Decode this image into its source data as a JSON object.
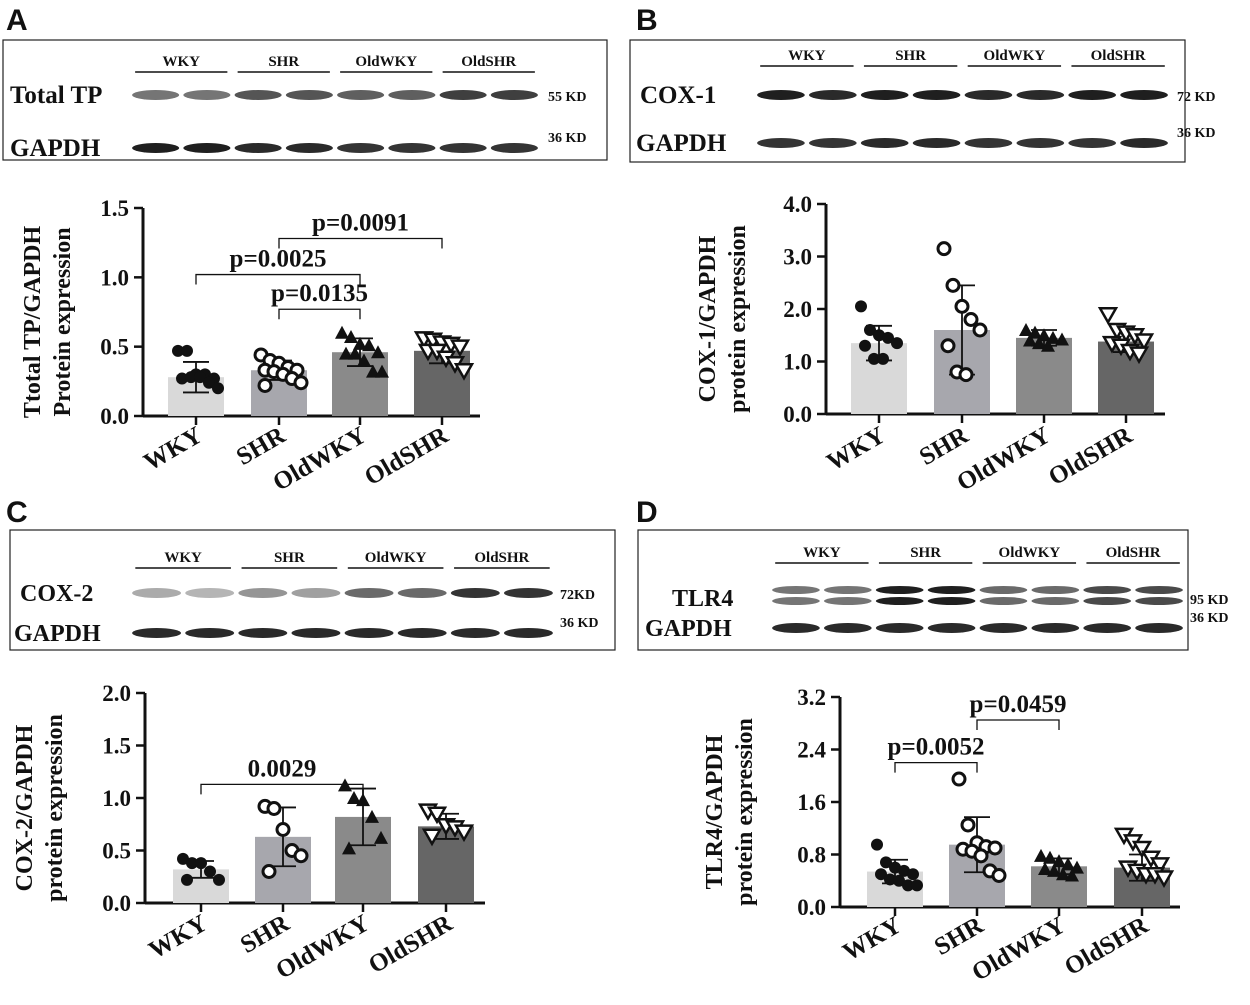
{
  "chart_data": [
    {
      "panel": "A",
      "type": "bar",
      "ylabel": [
        "Ttotal TP/GAPDH",
        "Protein expression"
      ],
      "categories": [
        "WKY",
        "SHR",
        "OldWKY",
        "OldSHR"
      ],
      "yticks": [
        "0.0",
        "0.5",
        "1.0",
        "1.5"
      ],
      "ylim": [
        0,
        1.5
      ],
      "values": [
        0.28,
        0.33,
        0.46,
        0.47
      ],
      "sd": [
        0.11,
        0.07,
        0.1,
        0.09
      ],
      "points": [
        [
          0.47,
          0.47,
          0.3,
          0.3,
          0.27,
          0.27,
          0.28,
          0.28,
          0.24,
          0.2
        ],
        [
          0.44,
          0.4,
          0.38,
          0.35,
          0.33,
          0.33,
          0.32,
          0.3,
          0.27,
          0.24,
          0.22
        ],
        [
          0.6,
          0.57,
          0.52,
          0.51,
          0.46,
          0.45,
          0.45,
          0.4,
          0.32,
          0.32
        ],
        [
          0.56,
          0.55,
          0.53,
          0.52,
          0.5,
          0.47,
          0.47,
          0.42,
          0.38,
          0.33
        ]
      ],
      "markers": [
        "filled-circle",
        "open-circle",
        "filled-triangle",
        "open-triangle-down"
      ],
      "brackets": [
        {
          "from": 0,
          "to": 2,
          "y": 1.02,
          "label": "p=0.0025"
        },
        {
          "from": 1,
          "to": 2,
          "y": 0.77,
          "label": "p=0.0135"
        },
        {
          "from": 1,
          "to": 3,
          "y": 1.28,
          "label": "p=0.0091"
        }
      ],
      "blot": {
        "groups": [
          "WKY",
          "SHR",
          "OldWKY",
          "OldSHR"
        ],
        "rows": [
          {
            "label": "Total TP",
            "kd": "55 KD",
            "intensity": [
              0.55,
              0.55,
              0.7,
              0.7,
              0.65,
              0.65,
              0.8,
              0.8
            ]
          },
          {
            "label": "GAPDH",
            "kd": "36 KD",
            "intensity": [
              0.95,
              0.95,
              0.9,
              0.9,
              0.85,
              0.85,
              0.85,
              0.85
            ]
          }
        ]
      }
    },
    {
      "panel": "B",
      "type": "bar",
      "ylabel": [
        "COX-1/GAPDH",
        "protein expression"
      ],
      "categories": [
        "WKY",
        "SHR",
        "OldWKY",
        "OldSHR"
      ],
      "yticks": [
        "0.0",
        "1.0",
        "2.0",
        "3.0",
        "4.0"
      ],
      "ylim": [
        0,
        4.0
      ],
      "values": [
        1.35,
        1.6,
        1.45,
        1.38
      ],
      "sd": [
        0.33,
        0.85,
        0.15,
        0.2
      ],
      "points": [
        [
          2.05,
          1.6,
          1.5,
          1.45,
          1.35,
          1.3,
          1.05,
          1.05
        ],
        [
          3.15,
          2.45,
          2.05,
          1.8,
          1.6,
          1.3,
          0.8,
          0.75
        ],
        [
          1.6,
          1.55,
          1.5,
          1.45,
          1.42,
          1.4,
          1.35,
          1.3
        ],
        [
          1.9,
          1.6,
          1.55,
          1.5,
          1.4,
          1.35,
          1.3,
          1.2,
          1.15
        ]
      ],
      "markers": [
        "filled-circle",
        "open-circle",
        "filled-triangle",
        "open-triangle-down"
      ],
      "brackets": [],
      "blot": {
        "groups": [
          "WKY",
          "SHR",
          "OldWKY",
          "OldSHR"
        ],
        "rows": [
          {
            "label": "COX-1",
            "kd": "72 KD",
            "intensity": [
              0.95,
              0.9,
              0.95,
              0.95,
              0.9,
              0.9,
              0.95,
              0.95
            ]
          },
          {
            "label": "GAPDH",
            "kd": "36 KD",
            "intensity": [
              0.85,
              0.85,
              0.9,
              0.9,
              0.85,
              0.85,
              0.85,
              0.9
            ]
          }
        ]
      }
    },
    {
      "panel": "C",
      "type": "bar",
      "ylabel": [
        "COX-2/GAPDH",
        "protein expression"
      ],
      "categories": [
        "WKY",
        "SHR",
        "OldWKY",
        "OldSHR"
      ],
      "yticks": [
        "0.0",
        "0.5",
        "1.0",
        "1.5",
        "2.0"
      ],
      "ylim": [
        0,
        2.0
      ],
      "values": [
        0.32,
        0.63,
        0.82,
        0.73
      ],
      "sd": [
        0.08,
        0.28,
        0.27,
        0.12
      ],
      "points": [
        [
          0.42,
          0.38,
          0.38,
          0.3,
          0.22,
          0.22
        ],
        [
          0.92,
          0.9,
          0.7,
          0.5,
          0.45,
          0.3
        ],
        [
          1.12,
          1.0,
          0.98,
          0.82,
          0.62,
          0.52
        ],
        [
          0.88,
          0.85,
          0.74,
          0.72,
          0.68,
          0.64
        ]
      ],
      "markers": [
        "filled-circle",
        "open-circle",
        "filled-triangle",
        "open-triangle-down"
      ],
      "brackets": [
        {
          "from": 0,
          "to": 2,
          "y": 1.13,
          "label": "0.0029"
        }
      ],
      "blot": {
        "groups": [
          "WKY",
          "SHR",
          "OldWKY",
          "OldSHR"
        ],
        "rows": [
          {
            "label": "COX-2",
            "kd": "72KD",
            "intensity": [
              0.3,
              0.25,
              0.4,
              0.35,
              0.6,
              0.6,
              0.85,
              0.85
            ]
          },
          {
            "label": "GAPDH",
            "kd": "36 KD",
            "intensity": [
              0.9,
              0.9,
              0.9,
              0.9,
              0.9,
              0.9,
              0.9,
              0.9
            ]
          }
        ]
      }
    },
    {
      "panel": "D",
      "type": "bar",
      "ylabel": [
        "TLR4/GAPDH",
        "protein expression"
      ],
      "categories": [
        "WKY",
        "SHR",
        "OldWKY",
        "OldSHR"
      ],
      "yticks": [
        "0.0",
        "0.8",
        "1.6",
        "2.4",
        "3.2"
      ],
      "ylim": [
        0,
        3.2
      ],
      "values": [
        0.54,
        0.95,
        0.62,
        0.6
      ],
      "sd": [
        0.18,
        0.42,
        0.12,
        0.2
      ],
      "points": [
        [
          0.95,
          0.68,
          0.6,
          0.55,
          0.5,
          0.5,
          0.42,
          0.4,
          0.33,
          0.33
        ],
        [
          1.95,
          1.25,
          0.98,
          0.92,
          0.9,
          0.88,
          0.85,
          0.78,
          0.55,
          0.48
        ],
        [
          0.78,
          0.75,
          0.7,
          0.65,
          0.6,
          0.58,
          0.55,
          0.5,
          0.48
        ],
        [
          1.1,
          1.0,
          0.9,
          0.75,
          0.65,
          0.6,
          0.55,
          0.5,
          0.5,
          0.45
        ]
      ],
      "markers": [
        "filled-circle",
        "open-circle",
        "filled-triangle",
        "open-triangle-down"
      ],
      "brackets": [
        {
          "from": 0,
          "to": 1,
          "y": 2.2,
          "label": "p=0.0052"
        },
        {
          "from": 1,
          "to": 2,
          "y": 2.85,
          "label": "p=0.0459"
        }
      ],
      "blot": {
        "groups": [
          "WKY",
          "SHR",
          "OldWKY",
          "OldSHR"
        ],
        "rows": [
          {
            "label": "TLR4",
            "kd": "95 KD",
            "intensity": [
              0.55,
              0.55,
              0.95,
              0.95,
              0.6,
              0.6,
              0.75,
              0.75
            ],
            "double": true
          },
          {
            "label": "GAPDH",
            "kd": "36 KD",
            "intensity": [
              0.9,
              0.9,
              0.9,
              0.9,
              0.9,
              0.9,
              0.9,
              0.9
            ]
          }
        ]
      }
    }
  ],
  "bar_colors": [
    "#d9d9d9",
    "#a7a7ad",
    "#8a8a8a",
    "#666666"
  ]
}
